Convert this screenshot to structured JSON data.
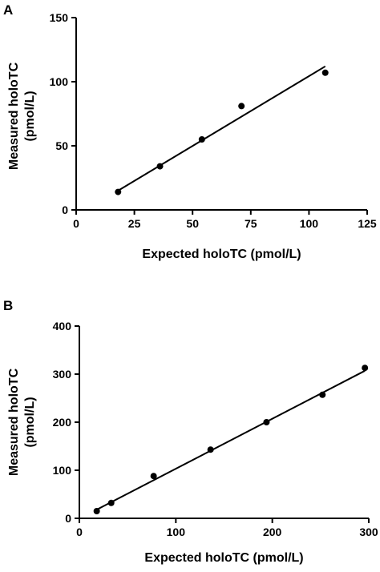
{
  "chart_data": [
    {
      "panel_label": "A",
      "type": "scatter",
      "title": "",
      "xlabel": "Expected holoTC (pmol/L)",
      "ylabel_line1": "Measured holoTC",
      "ylabel_line2": "(pmol/L)",
      "xlim": [
        0,
        125
      ],
      "ylim": [
        0,
        150
      ],
      "xticks": [
        0,
        25,
        50,
        75,
        100,
        125
      ],
      "yticks": [
        0,
        50,
        100,
        150
      ],
      "grid": false,
      "points": [
        {
          "x": 18,
          "y": 14
        },
        {
          "x": 36,
          "y": 34
        },
        {
          "x": 54,
          "y": 55
        },
        {
          "x": 71,
          "y": 81
        },
        {
          "x": 107,
          "y": 107
        }
      ],
      "fit_line": {
        "x": [
          18,
          107
        ],
        "y": [
          15,
          112
        ]
      }
    },
    {
      "panel_label": "B",
      "type": "scatter",
      "title": "",
      "xlabel": "Expected holoTC (pmol/L)",
      "ylabel_line1": "Measured holoTC",
      "ylabel_line2": "(pmol/L)",
      "xlim": [
        0,
        300
      ],
      "ylim": [
        0,
        400
      ],
      "xticks": [
        0,
        100,
        200,
        300
      ],
      "yticks": [
        0,
        100,
        200,
        300,
        400
      ],
      "grid": false,
      "points": [
        {
          "x": 18,
          "y": 15
        },
        {
          "x": 33,
          "y": 32
        },
        {
          "x": 77,
          "y": 88
        },
        {
          "x": 136,
          "y": 143
        },
        {
          "x": 194,
          "y": 200
        },
        {
          "x": 252,
          "y": 257
        },
        {
          "x": 296,
          "y": 313
        }
      ],
      "fit_line": {
        "x": [
          18,
          296
        ],
        "y": [
          18,
          307
        ]
      }
    }
  ]
}
